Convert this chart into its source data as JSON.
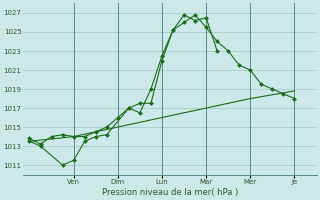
{
  "bg_color": "#cde8e8",
  "grid_color": "#aacccc",
  "line_color": "#1a6b1a",
  "marker_color": "#1a6b1a",
  "xlabel": "Pression niveau de la mer( hPa )",
  "ylim": [
    1010.0,
    1028.0
  ],
  "yticks": [
    1011,
    1013,
    1015,
    1017,
    1019,
    1021,
    1023,
    1025,
    1027
  ],
  "x_day_labels": [
    "Ven",
    "Dim",
    "Lun",
    "Mar",
    "Mer",
    "Je"
  ],
  "x_day_positions": [
    2.0,
    4.0,
    6.0,
    8.0,
    10.0,
    12.0
  ],
  "xlim": [
    -0.3,
    13.0
  ],
  "series1_x": [
    0.0,
    0.5,
    1.5,
    2.0,
    2.5,
    3.0,
    3.5,
    4.5,
    5.0,
    5.5,
    6.0,
    6.5,
    7.0,
    7.5,
    8.0,
    8.5
  ],
  "series1_y": [
    1013.5,
    1013.0,
    1011.0,
    1011.5,
    1013.5,
    1014.0,
    1014.2,
    1017.0,
    1016.5,
    1019.0,
    1022.5,
    1025.2,
    1026.8,
    1026.2,
    1026.5,
    1023.0
  ],
  "series2_x": [
    0.0,
    0.5,
    1.0,
    1.5,
    2.0,
    2.5,
    3.0,
    3.5,
    4.0,
    4.5,
    5.0,
    5.5,
    6.0,
    6.5,
    7.0,
    7.5,
    8.0,
    8.5,
    9.0,
    9.5,
    10.0,
    10.5,
    11.0,
    11.5,
    12.0
  ],
  "series2_y": [
    1013.8,
    1013.2,
    1014.0,
    1014.2,
    1014.0,
    1014.0,
    1014.5,
    1015.0,
    1016.0,
    1017.0,
    1017.5,
    1017.5,
    1022.0,
    1025.2,
    1026.0,
    1026.8,
    1025.5,
    1024.0,
    1023.0,
    1021.5,
    1021.0,
    1019.5,
    1019.0,
    1018.5,
    1018.0
  ],
  "series3_x": [
    0.0,
    2.0,
    4.0,
    6.0,
    8.0,
    10.0,
    12.0
  ],
  "series3_y": [
    1013.5,
    1014.0,
    1015.0,
    1016.0,
    1017.0,
    1018.0,
    1018.8
  ]
}
